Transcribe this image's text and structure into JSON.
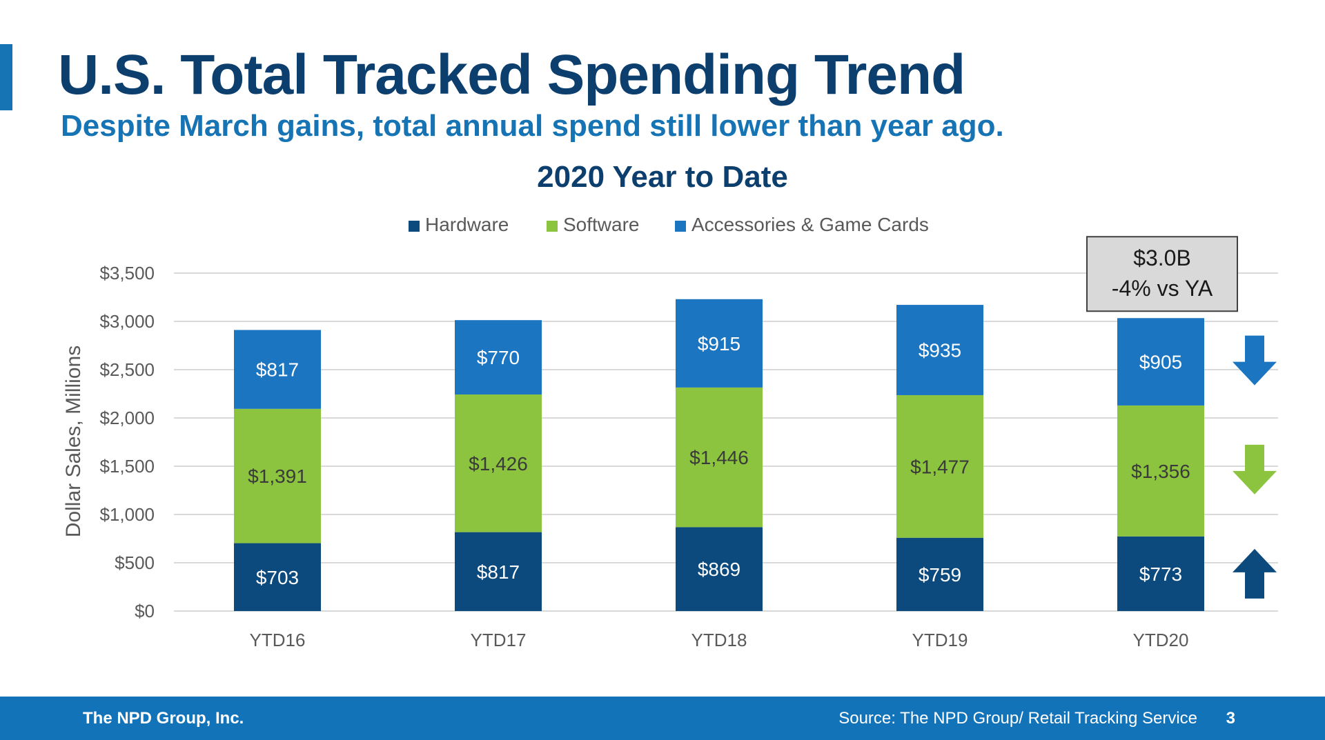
{
  "header": {
    "title": "U.S. Total Tracked Spending Trend",
    "subtitle": "Despite March gains, total annual spend still lower than year ago."
  },
  "colors": {
    "title": "#0c3f6e",
    "subtitle": "#1673b4",
    "accent": "#1673b4",
    "hardware": "#0c4a7d",
    "software": "#8cc43f",
    "accessories": "#1c75c0",
    "footer": "#1373b9",
    "arrow_down_blue": "#1c75c0",
    "arrow_down_green": "#8cc43f",
    "arrow_up_navy": "#0c4a7d",
    "callout_bg": "#d9d9d9"
  },
  "chart_data": {
    "type": "bar",
    "stacked": true,
    "title": "2020 Year to Date",
    "categories": [
      "YTD16",
      "YTD17",
      "YTD18",
      "YTD19",
      "YTD20"
    ],
    "series": [
      {
        "name": "Hardware",
        "color": "#0c4a7d",
        "values": [
          703,
          817,
          869,
          759,
          773
        ],
        "labels": [
          "$703",
          "$817",
          "$869",
          "$759",
          "$773"
        ]
      },
      {
        "name": "Software",
        "color": "#8cc43f",
        "values": [
          1391,
          1426,
          1446,
          1477,
          1356
        ],
        "labels": [
          "$1,391",
          "$1,426",
          "$1,446",
          "$1,477",
          "$1,356"
        ]
      },
      {
        "name": "Accessories & Game Cards",
        "color": "#1c75c0",
        "values": [
          817,
          770,
          915,
          935,
          905
        ],
        "labels": [
          "$817",
          "$770",
          "$915",
          "$935",
          "$905"
        ]
      }
    ],
    "ylabel": "Dollar Sales, Millions",
    "xlabel": "",
    "ylim": [
      0,
      3500
    ],
    "yticks": [
      0,
      500,
      1000,
      1500,
      2000,
      2500,
      3000,
      3500
    ],
    "ytick_labels": [
      "$0",
      "$500",
      "$1,000",
      "$1,500",
      "$2,000",
      "$2,500",
      "$3,000",
      "$3,500"
    ],
    "grid": true,
    "legend": "top-center",
    "callout": {
      "line1": "$3.0B",
      "line2": "-4% vs YA"
    },
    "trend_arrows": [
      {
        "series": "Accessories & Game Cards",
        "direction": "down"
      },
      {
        "series": "Software",
        "direction": "down"
      },
      {
        "series": "Hardware",
        "direction": "up"
      }
    ]
  },
  "footer": {
    "company": "The NPD Group, Inc.",
    "source": "Source: The NPD Group/ Retail Tracking Service",
    "page": "3"
  }
}
